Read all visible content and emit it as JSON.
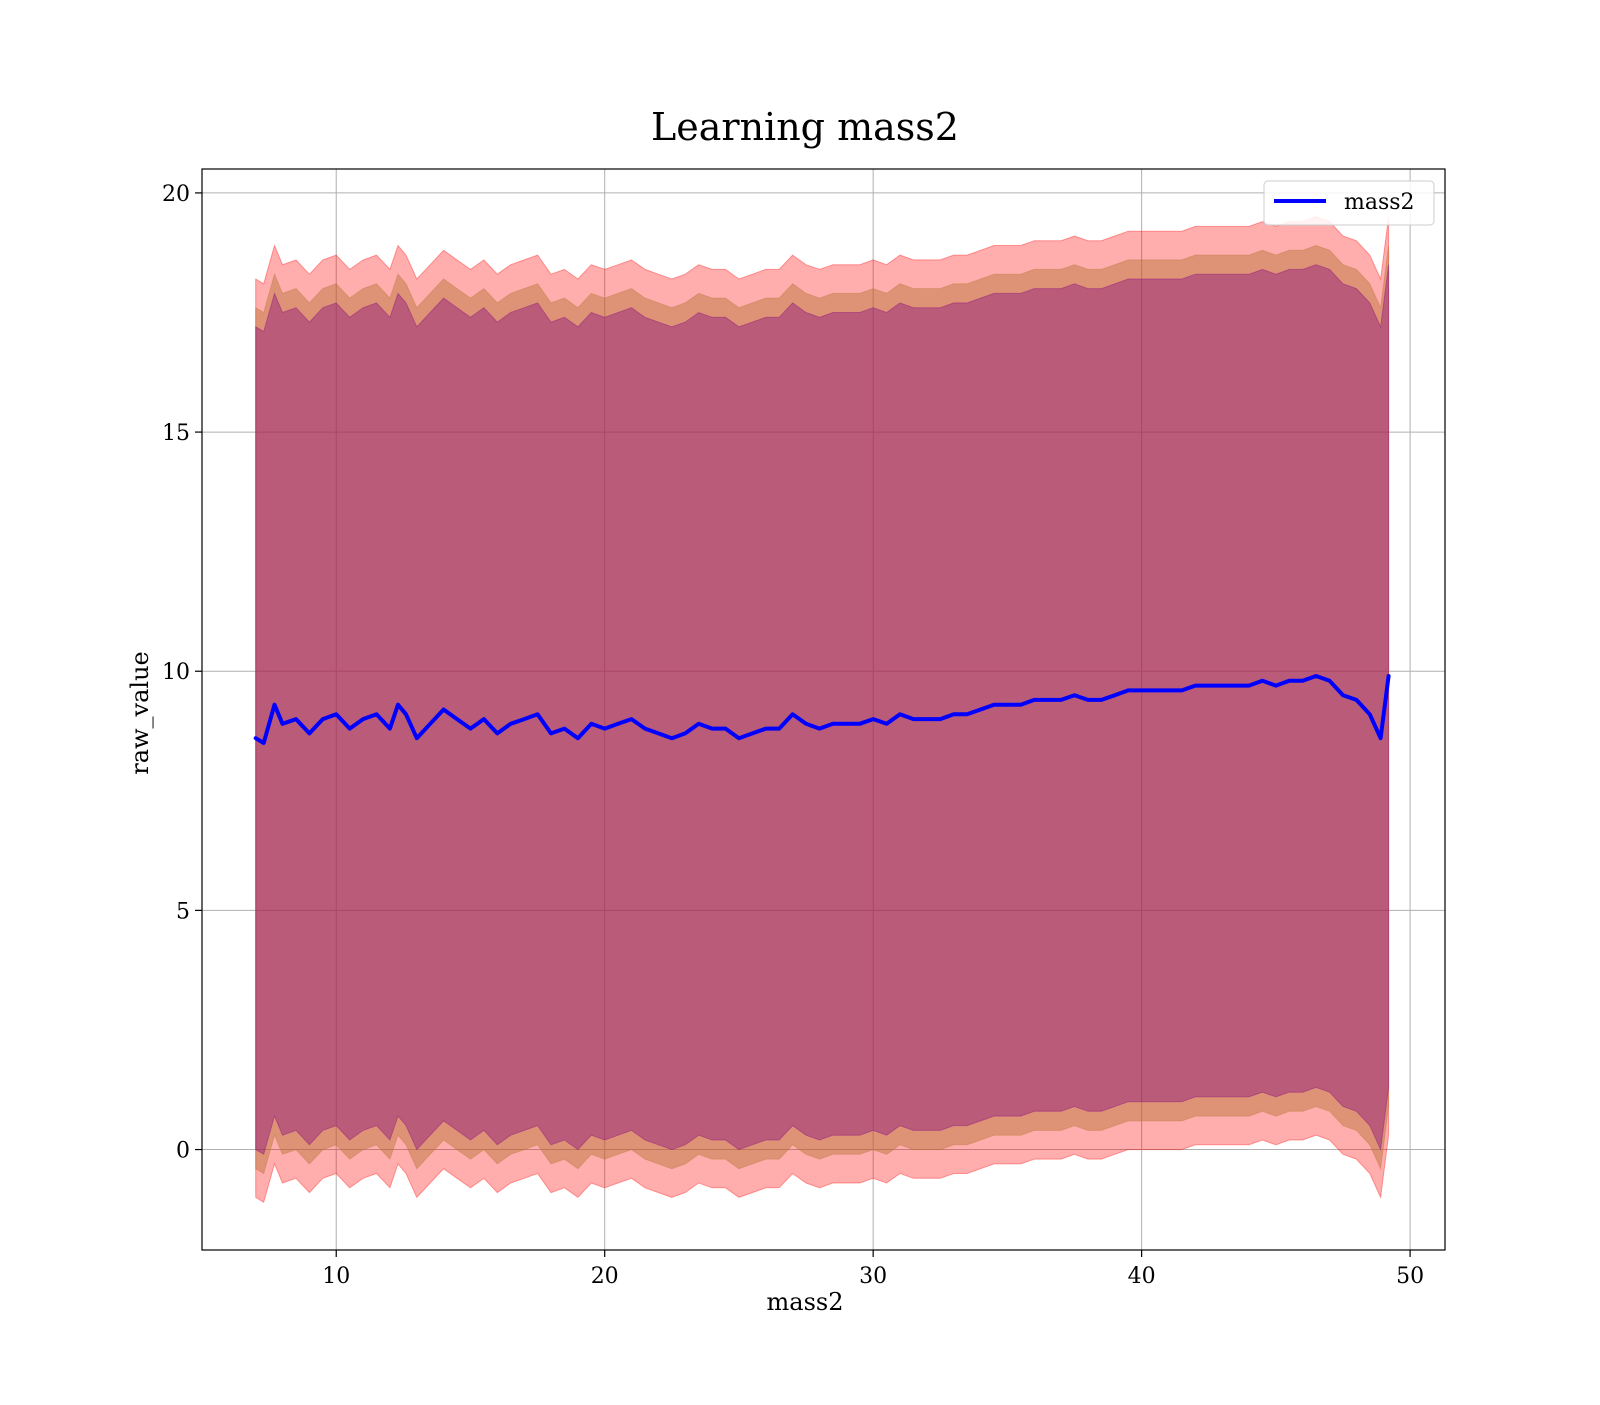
{
  "chart_data": {
    "type": "line",
    "title": "Learning mass2",
    "xlabel": "mass2",
    "ylabel": "raw_value",
    "xlim": [
      5,
      51.3
    ],
    "ylim": [
      -2.1,
      20.5
    ],
    "xticks": [
      10,
      20,
      30,
      40,
      50
    ],
    "yticks": [
      0,
      5,
      10,
      15,
      20
    ],
    "xtick_labels": [
      "10",
      "20",
      "30",
      "40",
      "50"
    ],
    "ytick_labels": [
      "0",
      "5",
      "10",
      "15",
      "20"
    ],
    "grid": true,
    "legend": {
      "position": "top-right",
      "entries": [
        "mass2"
      ]
    },
    "colors": {
      "line": "#0000ff",
      "band_outer": "#ff0000",
      "band_middle": "#b87333",
      "band_inner": "#800080",
      "grid": "#b0b0b0"
    },
    "series": [
      {
        "name": "mass2",
        "x": [
          7.0,
          7.3,
          7.7,
          8.0,
          8.5,
          9.0,
          9.5,
          10.0,
          10.5,
          11.0,
          11.5,
          12.0,
          12.3,
          12.6,
          13.0,
          13.5,
          14.0,
          14.5,
          15.0,
          15.5,
          16.0,
          16.5,
          17.0,
          17.5,
          18.0,
          18.5,
          19.0,
          19.5,
          20.0,
          20.5,
          21.0,
          21.5,
          22.0,
          22.5,
          23.0,
          23.5,
          24.0,
          24.5,
          25.0,
          25.5,
          26.0,
          26.5,
          27.0,
          27.5,
          28.0,
          28.5,
          29.0,
          29.5,
          30.0,
          30.5,
          31.0,
          31.5,
          32.0,
          32.5,
          33.0,
          33.5,
          34.0,
          34.5,
          35.0,
          35.5,
          36.0,
          36.5,
          37.0,
          37.5,
          38.0,
          38.5,
          39.0,
          39.5,
          40.0,
          40.5,
          41.0,
          41.5,
          42.0,
          42.5,
          43.0,
          43.5,
          44.0,
          44.5,
          45.0,
          45.5,
          46.0,
          46.5,
          47.0,
          47.5,
          48.0,
          48.5,
          48.9,
          49.2
        ],
        "y": [
          8.6,
          8.5,
          9.3,
          8.9,
          9.0,
          8.7,
          9.0,
          9.1,
          8.8,
          9.0,
          9.1,
          8.8,
          9.3,
          9.1,
          8.6,
          8.9,
          9.2,
          9.0,
          8.8,
          9.0,
          8.7,
          8.9,
          9.0,
          9.1,
          8.7,
          8.8,
          8.6,
          8.9,
          8.8,
          8.9,
          9.0,
          8.8,
          8.7,
          8.6,
          8.7,
          8.9,
          8.8,
          8.8,
          8.6,
          8.7,
          8.8,
          8.8,
          9.1,
          8.9,
          8.8,
          8.9,
          8.9,
          8.9,
          9.0,
          8.9,
          9.1,
          9.0,
          9.0,
          9.0,
          9.1,
          9.1,
          9.2,
          9.3,
          9.3,
          9.3,
          9.4,
          9.4,
          9.4,
          9.5,
          9.4,
          9.4,
          9.5,
          9.6,
          9.6,
          9.6,
          9.6,
          9.6,
          9.7,
          9.7,
          9.7,
          9.7,
          9.7,
          9.8,
          9.7,
          9.8,
          9.8,
          9.9,
          9.8,
          9.5,
          9.4,
          9.1,
          8.6,
          9.9
        ]
      }
    ],
    "bands": [
      {
        "level": "outer",
        "half_width": 9.6
      },
      {
        "level": "middle",
        "half_width": 9.0
      },
      {
        "level": "inner",
        "half_width": 8.6
      }
    ]
  }
}
